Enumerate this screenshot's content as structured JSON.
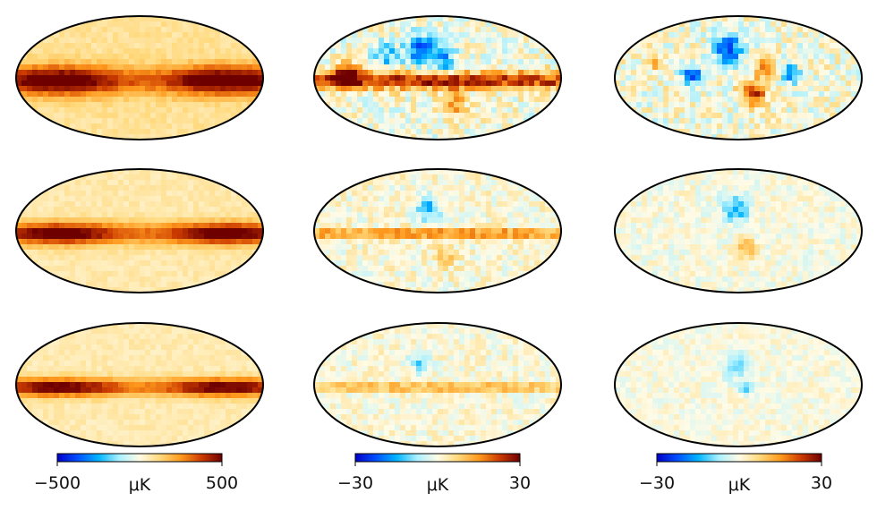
{
  "chart_data": {
    "type": "heatmap",
    "description_note": "3x3 grid of Mollweide all-sky maps with a shared colorbar per column",
    "colormap": {
      "name": "planck-diverging",
      "stops": [
        "#0000c8",
        "#0050ff",
        "#00b4ff",
        "#aaf0ff",
        "#fffbe6",
        "#ffd87a",
        "#ff9a1e",
        "#cc3c00",
        "#6e0000"
      ]
    },
    "columns": [
      {
        "colorbar": {
          "min": -500,
          "max": 500,
          "unit": "μK",
          "tick_min_label": "−500",
          "tick_max_label": "500",
          "unit_label": "μK"
        },
        "maps": [
          {
            "pattern": "galactic-emission",
            "band_level": 1.0,
            "background_level": 0.18,
            "noise": 0.06,
            "band_width": 0.08,
            "blobs": []
          },
          {
            "pattern": "galactic-emission",
            "band_level": 1.0,
            "background_level": 0.13,
            "noise": 0.05,
            "band_width": 0.06,
            "blobs": []
          },
          {
            "pattern": "galactic-emission",
            "band_level": 0.95,
            "background_level": 0.12,
            "noise": 0.05,
            "band_width": 0.05,
            "blobs": []
          }
        ]
      },
      {
        "colorbar": {
          "min": -30,
          "max": 30,
          "unit": "μK",
          "tick_min_label": "−30",
          "tick_max_label": "30",
          "unit_label": "μK"
        },
        "maps": [
          {
            "pattern": "residual",
            "band_level": 0.9,
            "background_level": 0.0,
            "noise": 0.22,
            "band_width": 0.05,
            "blobs": [
              {
                "cx": 0.42,
                "cy": 0.25,
                "r": 0.12,
                "v": -0.75
              },
              {
                "cx": 0.52,
                "cy": 0.35,
                "r": 0.1,
                "v": -0.55
              },
              {
                "cx": 0.28,
                "cy": 0.3,
                "r": 0.1,
                "v": -0.45
              },
              {
                "cx": 0.55,
                "cy": 0.7,
                "r": 0.1,
                "v": 0.55
              },
              {
                "cx": 0.12,
                "cy": 0.45,
                "r": 0.1,
                "v": 0.9
              }
            ]
          },
          {
            "pattern": "residual",
            "band_level": 0.65,
            "background_level": 0.02,
            "noise": 0.15,
            "band_width": 0.025,
            "blobs": [
              {
                "cx": 0.45,
                "cy": 0.3,
                "r": 0.1,
                "v": -0.5
              },
              {
                "cx": 0.52,
                "cy": 0.68,
                "r": 0.09,
                "v": 0.3
              }
            ]
          },
          {
            "pattern": "residual",
            "band_level": 0.55,
            "background_level": 0.02,
            "noise": 0.13,
            "band_width": 0.02,
            "blobs": [
              {
                "cx": 0.42,
                "cy": 0.3,
                "r": 0.09,
                "v": -0.35
              }
            ]
          }
        ]
      },
      {
        "colorbar": {
          "min": -30,
          "max": 30,
          "unit": "μK",
          "tick_min_label": "−30",
          "tick_max_label": "30",
          "unit_label": "μK"
        },
        "maps": [
          {
            "pattern": "residual",
            "band_level": 0.0,
            "background_level": 0.0,
            "noise": 0.22,
            "band_width": 0.03,
            "blobs": [
              {
                "cx": 0.45,
                "cy": 0.25,
                "r": 0.12,
                "v": -0.8
              },
              {
                "cx": 0.55,
                "cy": 0.6,
                "r": 0.1,
                "v": 0.85
              },
              {
                "cx": 0.3,
                "cy": 0.45,
                "r": 0.07,
                "v": -0.85
              },
              {
                "cx": 0.7,
                "cy": 0.45,
                "r": 0.07,
                "v": -0.7
              },
              {
                "cx": 0.6,
                "cy": 0.4,
                "r": 0.08,
                "v": 0.7
              },
              {
                "cx": 0.15,
                "cy": 0.35,
                "r": 0.08,
                "v": 0.4
              }
            ]
          },
          {
            "pattern": "residual",
            "band_level": 0.0,
            "background_level": 0.0,
            "noise": 0.12,
            "band_width": 0.03,
            "blobs": [
              {
                "cx": 0.48,
                "cy": 0.3,
                "r": 0.11,
                "v": -0.5
              },
              {
                "cx": 0.52,
                "cy": 0.62,
                "r": 0.08,
                "v": 0.4
              }
            ]
          },
          {
            "pattern": "residual",
            "band_level": 0.0,
            "background_level": 0.0,
            "noise": 0.1,
            "band_width": 0.03,
            "blobs": [
              {
                "cx": 0.48,
                "cy": 0.33,
                "r": 0.1,
                "v": -0.35
              },
              {
                "cx": 0.52,
                "cy": 0.5,
                "r": 0.05,
                "v": -0.45
              }
            ]
          }
        ]
      }
    ]
  }
}
